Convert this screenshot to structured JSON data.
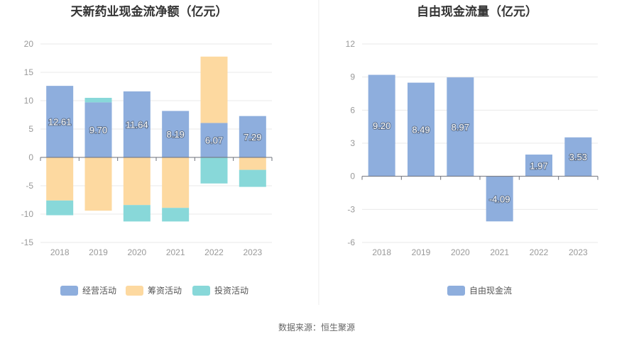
{
  "source": "数据来源：恒生聚源",
  "colors": {
    "operating": "#8eaedd",
    "financing": "#fdd9a0",
    "investing": "#88d8d9",
    "fcf": "#8eaedd"
  },
  "chart_data": [
    {
      "type": "bar",
      "stacked": true,
      "title": "天新药业现金流净额（亿元）",
      "categories": [
        "2018",
        "2019",
        "2020",
        "2021",
        "2022",
        "2023"
      ],
      "series": [
        {
          "name": "经营活动",
          "values": [
            12.61,
            9.7,
            11.64,
            8.19,
            6.07,
            7.29
          ]
        },
        {
          "name": "筹资活动",
          "values": [
            -7.6,
            -9.4,
            -8.4,
            -8.9,
            11.7,
            -2.2
          ]
        },
        {
          "name": "投资活动",
          "values": [
            -2.6,
            0.8,
            -2.9,
            -2.4,
            -4.6,
            -3.0
          ]
        }
      ],
      "data_labels": [
        "12.61",
        "9.70",
        "11.64",
        "8.19",
        "6.07",
        "7.29"
      ],
      "ylim": [
        -15,
        20
      ],
      "yticks": [
        "20",
        "15",
        "10",
        "5",
        "0",
        "-5",
        "-10",
        "-15"
      ],
      "legend": "bottom",
      "grid": true
    },
    {
      "type": "bar",
      "title": "自由现金流量（亿元）",
      "categories": [
        "2018",
        "2019",
        "2020",
        "2021",
        "2022",
        "2023"
      ],
      "series": [
        {
          "name": "自由现金流",
          "values": [
            9.2,
            8.49,
            8.97,
            -4.09,
            1.97,
            3.53
          ]
        }
      ],
      "data_labels": [
        "9.20",
        "8.49",
        "8.97",
        "-4.09",
        "1.97",
        "3.53"
      ],
      "ylim": [
        -6,
        12
      ],
      "yticks": [
        "12",
        "9",
        "6",
        "3",
        "0",
        "-3",
        "-6"
      ],
      "legend": "bottom",
      "grid": true
    }
  ]
}
